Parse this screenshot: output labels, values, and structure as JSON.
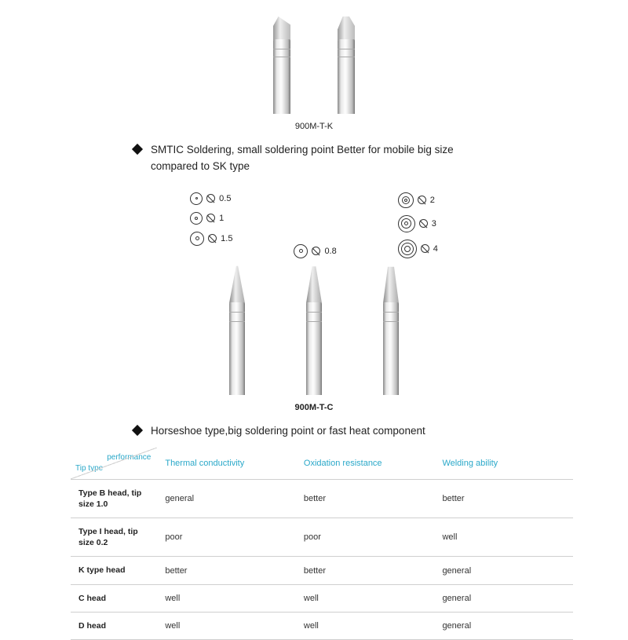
{
  "section1": {
    "model": "900M-T-K",
    "bullet": "SMTIC Soldering, small soldering point Better for mobile  big size compared to SK type"
  },
  "section2": {
    "sizes_left": [
      "0.5",
      "1",
      "1.5"
    ],
    "sizes_mid": [
      "0.8"
    ],
    "sizes_right": [
      "2",
      "3",
      "4"
    ],
    "model": "900M-T-C",
    "bullet": "Horseshoe type,big soldering point or fast heat component"
  },
  "table": {
    "corner_top": "performance",
    "corner_bottom": "Tip type",
    "headers": [
      "Thermal conductivity",
      "Oxidation resistance",
      "Welding ability"
    ],
    "rows": [
      {
        "label": "Type B head, tip size 1.0",
        "cells": [
          "general",
          "better",
          "better"
        ]
      },
      {
        "label": "Type I head, tip size 0.2",
        "cells": [
          "poor",
          "poor",
          "well"
        ]
      },
      {
        "label": "K type head",
        "cells": [
          "better",
          "better",
          "general"
        ]
      },
      {
        "label": "C head",
        "cells": [
          "well",
          "well",
          "general"
        ]
      },
      {
        "label": "D head",
        "cells": [
          "well",
          "well",
          "general"
        ]
      }
    ]
  },
  "colors": {
    "accent": "#2aa8c9",
    "border": "#cfcfcf",
    "text": "#222222",
    "bg": "#ffffff"
  }
}
